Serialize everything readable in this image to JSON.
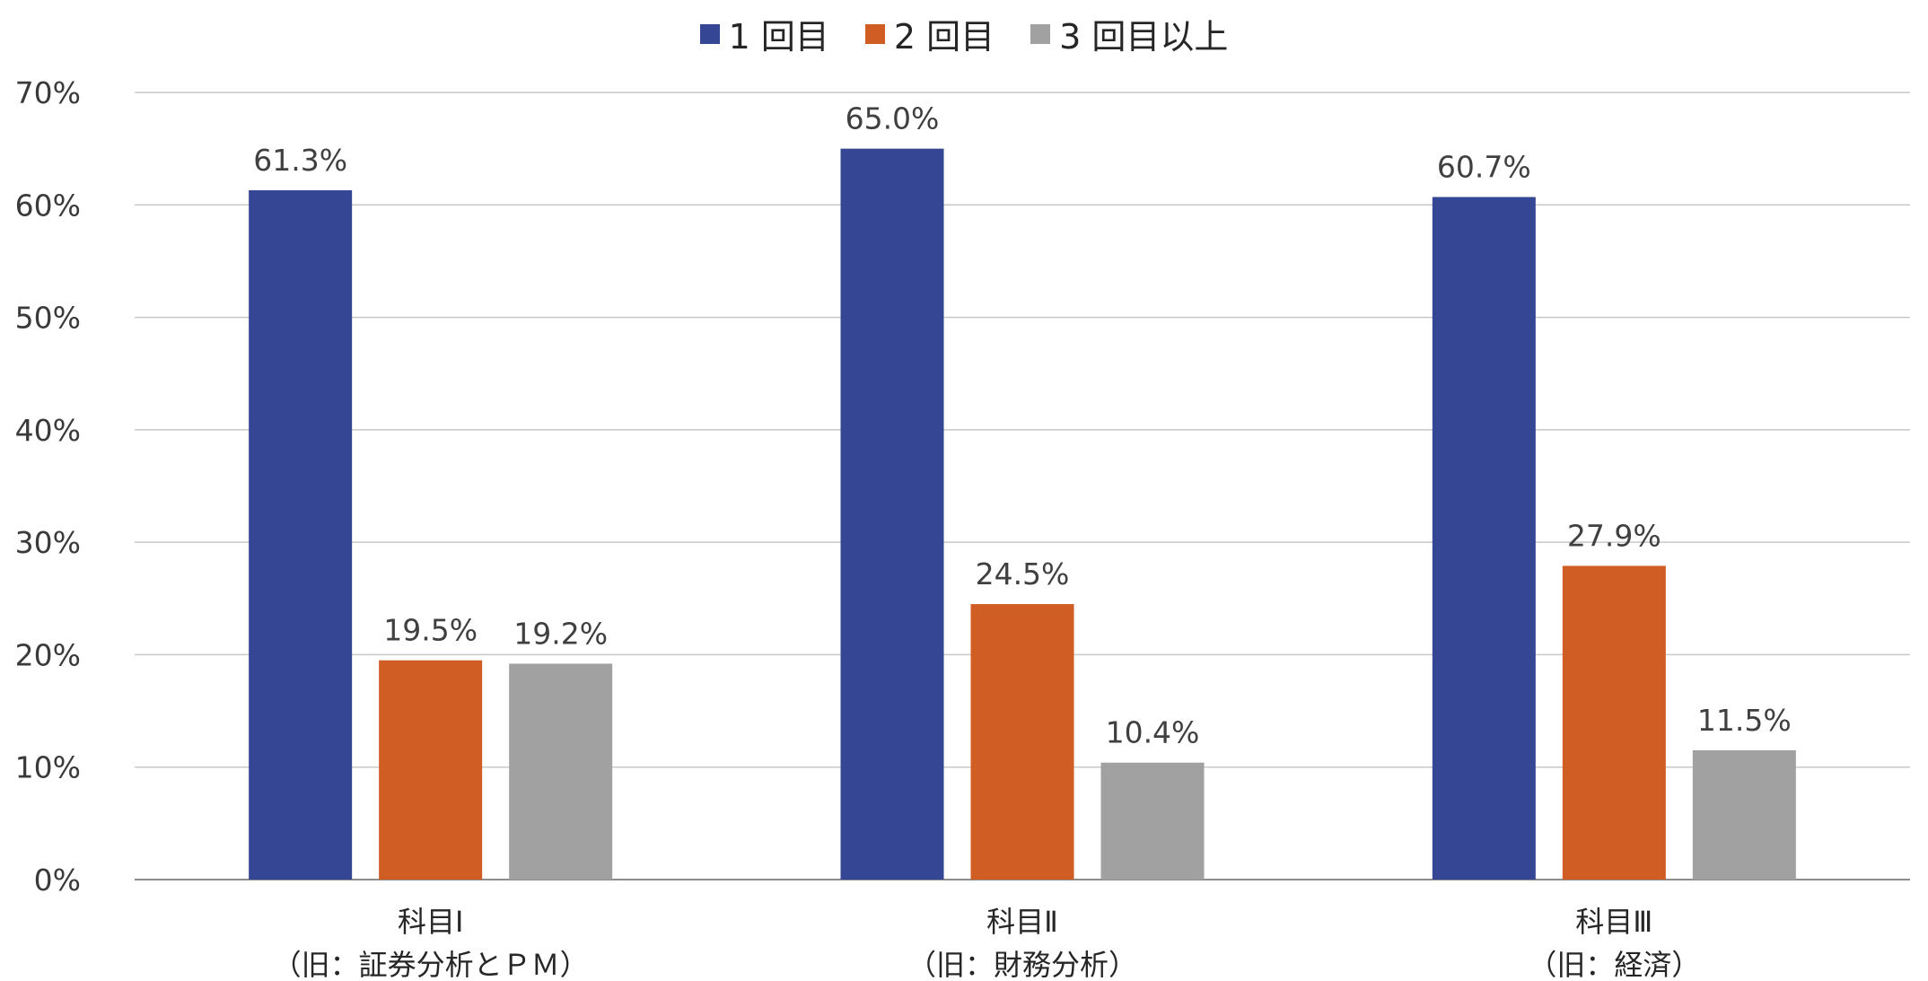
{
  "chart_data": {
    "type": "bar",
    "title": "",
    "xlabel": "",
    "ylabel": "",
    "ylim": [
      0,
      70
    ],
    "yticks": [
      "0%",
      "10%",
      "20%",
      "30%",
      "40%",
      "50%",
      "60%",
      "70%"
    ],
    "grid": true,
    "legend_position": "top-center",
    "categories": [
      [
        "科目Ⅰ",
        "（旧：証券分析とＰＭ）"
      ],
      [
        "科目Ⅱ",
        "（旧：財務分析）"
      ],
      [
        "科目Ⅲ",
        "（旧：経済）"
      ]
    ],
    "series": [
      {
        "name": "1 回目",
        "color": "#344694",
        "values": [
          61.3,
          65.0,
          60.7
        ],
        "labels": [
          "61.3%",
          "65.0%",
          "60.7%"
        ]
      },
      {
        "name": "2 回目",
        "color": "#D05E24",
        "values": [
          19.5,
          24.5,
          27.9
        ],
        "labels": [
          "19.5%",
          "24.5%",
          "27.9%"
        ]
      },
      {
        "name": "3 回目以上",
        "color": "#A1A1A1",
        "values": [
          19.2,
          10.4,
          11.5
        ],
        "labels": [
          "19.2%",
          "10.4%",
          "11.5%"
        ]
      }
    ]
  }
}
